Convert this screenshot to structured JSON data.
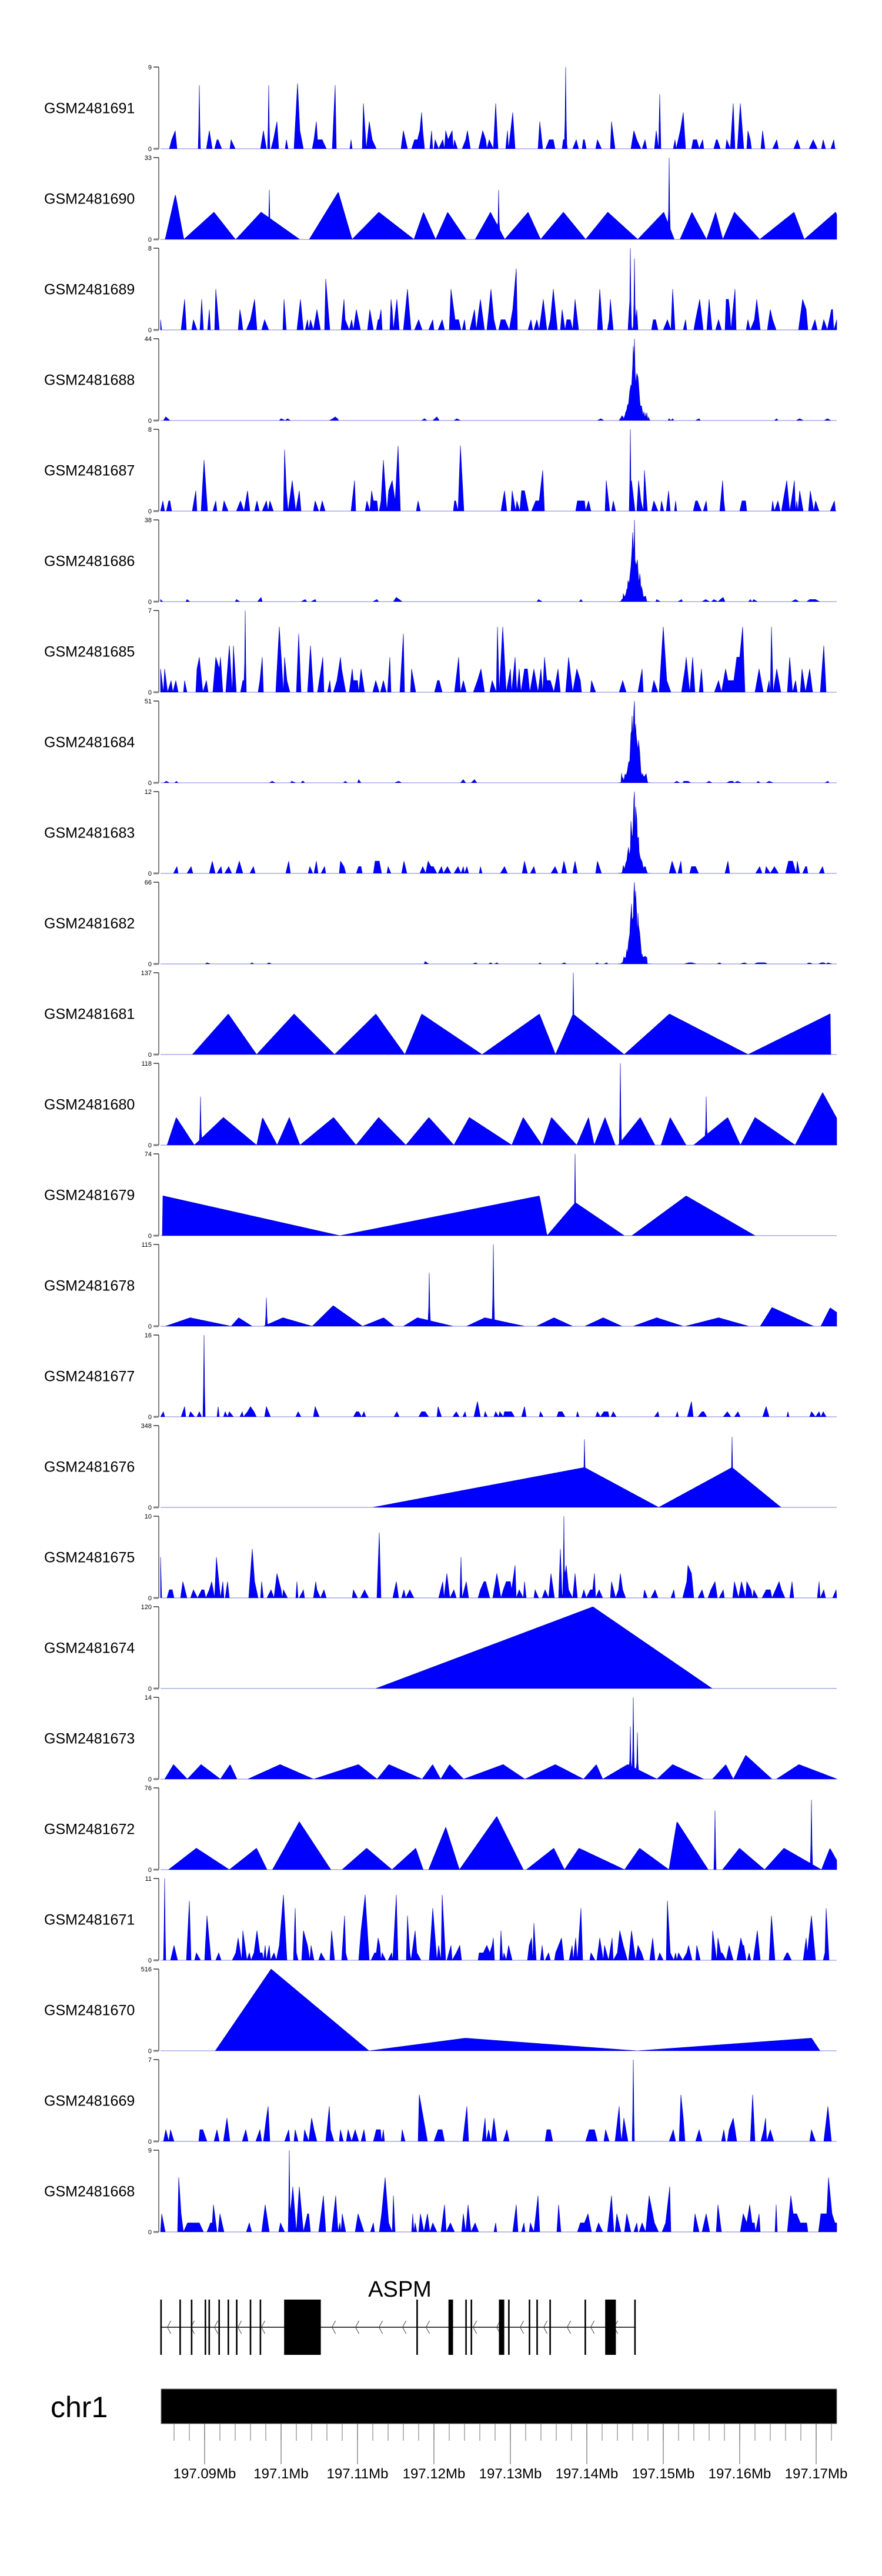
{
  "chart_data": {
    "type": "area",
    "title": "",
    "xlabel": "",
    "xlim_mb": [
      197.0842,
      197.1727
    ],
    "fill_color": "#0000FF",
    "outline_color": "#0000B0",
    "axis_color": "#808080",
    "main_peak_mb": 197.1462,
    "tracks": [
      {
        "name": "GSM2481691",
        "ymax": 9,
        "kind": "dense",
        "mean": 1.2,
        "seed": 11,
        "spikes": [
          [
            197.1372,
            9
          ],
          [
            197.0893,
            7
          ],
          [
            197.0984,
            7
          ]
        ]
      },
      {
        "name": "GSM2481690",
        "ymax": 33,
        "kind": "tri",
        "level": 11,
        "seed": 12,
        "spikes": [
          [
            197.1508,
            33
          ],
          [
            197.0985,
            20
          ],
          [
            197.1285,
            20
          ]
        ]
      },
      {
        "name": "GSM2481689",
        "ymax": 8,
        "kind": "dense",
        "mean": 1.6,
        "seed": 13,
        "spikes": [
          [
            197.1457,
            8
          ],
          [
            197.1462,
            7
          ]
        ]
      },
      {
        "name": "GSM2481688",
        "ymax": 44,
        "kind": "peak",
        "noise": 0.4,
        "seed": 14,
        "spikes": [
          [
            197.1462,
            44
          ]
        ]
      },
      {
        "name": "GSM2481687",
        "ymax": 8,
        "kind": "dense",
        "mean": 1.3,
        "seed": 15,
        "spikes": [
          [
            197.1457,
            8
          ]
        ]
      },
      {
        "name": "GSM2481686",
        "ymax": 38,
        "kind": "peak",
        "noise": 0.4,
        "seed": 16,
        "spikes": [
          [
            197.1462,
            38
          ]
        ]
      },
      {
        "name": "GSM2481685",
        "ymax": 7,
        "kind": "dense",
        "mean": 1.6,
        "seed": 17,
        "spikes": [
          [
            197.0953,
            7
          ]
        ]
      },
      {
        "name": "GSM2481684",
        "ymax": 51,
        "kind": "peak",
        "noise": 0.5,
        "seed": 18,
        "spikes": [
          [
            197.1462,
            51
          ]
        ]
      },
      {
        "name": "GSM2481683",
        "ymax": 12,
        "kind": "peak",
        "noise": 1.0,
        "seed": 19,
        "spikes": [
          [
            197.1462,
            12
          ]
        ]
      },
      {
        "name": "GSM2481682",
        "ymax": 66,
        "kind": "peak",
        "noise": 0.5,
        "seed": 20,
        "spikes": [
          [
            197.1462,
            66
          ]
        ]
      },
      {
        "name": "GSM2481681",
        "ymax": 137,
        "kind": "explicit",
        "spikes": [
          [
            197.1382,
            137
          ]
        ],
        "triangles": [
          [
            197.0884,
            197.0931,
            197.0968,
            68
          ],
          [
            197.0968,
            197.1017,
            197.107,
            68
          ],
          [
            197.107,
            197.1124,
            197.1162,
            68
          ],
          [
            197.1162,
            197.1184,
            197.1263,
            68
          ],
          [
            197.1263,
            197.1338,
            197.1359,
            68
          ],
          [
            197.1359,
            197.1382,
            197.1449,
            68
          ],
          [
            197.1449,
            197.1508,
            197.1611,
            68
          ],
          [
            197.1611,
            197.1718,
            197.1718,
            68
          ]
        ]
      },
      {
        "name": "GSM2481680",
        "ymax": 118,
        "kind": "tri",
        "level": 40,
        "seed": 22,
        "spikes": [
          [
            197.1444,
            118
          ],
          [
            197.1556,
            70
          ],
          [
            197.0895,
            70
          ]
        ]
      },
      {
        "name": "GSM2481679",
        "ymax": 74,
        "kind": "explicit",
        "spikes": [
          [
            197.1385,
            74
          ]
        ],
        "triangles": [
          [
            197.0846,
            197.0846,
            197.1077,
            36
          ],
          [
            197.1077,
            197.1338,
            197.1348,
            36
          ],
          [
            197.1348,
            197.1385,
            197.1449,
            30
          ],
          [
            197.1459,
            197.153,
            197.162,
            36
          ]
        ]
      },
      {
        "name": "GSM2481678",
        "ymax": 115,
        "kind": "tri",
        "level": 12,
        "seed": 24,
        "spikes": [
          [
            197.1278,
            115
          ],
          [
            197.1194,
            75
          ],
          [
            197.0981,
            40
          ]
        ]
      },
      {
        "name": "GSM2481677",
        "ymax": 16,
        "kind": "dense",
        "mean": 0.8,
        "seed": 25,
        "spikes": [
          [
            197.0899,
            16
          ]
        ]
      },
      {
        "name": "GSM2481676",
        "ymax": 348,
        "kind": "explicit",
        "spikes": [
          [
            197.1397,
            290
          ],
          [
            197.159,
            300
          ]
        ],
        "triangles": [
          [
            197.112,
            197.1397,
            197.1494,
            170
          ],
          [
            197.1494,
            197.159,
            197.1654,
            170
          ]
        ]
      },
      {
        "name": "GSM2481675",
        "ymax": 10,
        "kind": "dense",
        "mean": 1.5,
        "seed": 27,
        "spikes": [
          [
            197.137,
            10
          ]
        ]
      },
      {
        "name": "GSM2481674",
        "ymax": 120,
        "kind": "explicit",
        "spikes": [],
        "triangles": [
          [
            197.1124,
            197.1408,
            197.1564,
            120
          ]
        ]
      },
      {
        "name": "GSM2481673",
        "ymax": 14,
        "kind": "tri",
        "level": 2.5,
        "seed": 29,
        "spikes": [
          [
            197.1461,
            14
          ],
          [
            197.1457,
            9
          ],
          [
            197.1466,
            8
          ]
        ]
      },
      {
        "name": "GSM2481672",
        "ymax": 76,
        "kind": "tri",
        "level": 20,
        "seed": 30,
        "spikes": [
          [
            197.1568,
            55
          ],
          [
            197.1694,
            65
          ]
        ]
      },
      {
        "name": "GSM2481671",
        "ymax": 11,
        "kind": "dense",
        "mean": 2.5,
        "seed": 31,
        "spikes": [
          [
            197.0848,
            11
          ]
        ]
      },
      {
        "name": "GSM2481670",
        "ymax": 516,
        "kind": "explicit",
        "spikes": [],
        "triangles": [
          [
            197.0914,
            197.0987,
            197.1115,
            516
          ],
          [
            197.1115,
            197.1241,
            197.1466,
            80
          ],
          [
            197.1466,
            197.1694,
            197.1705,
            80
          ]
        ]
      },
      {
        "name": "GSM2481669",
        "ymax": 7,
        "kind": "dense",
        "mean": 0.9,
        "seed": 33,
        "spikes": [
          [
            197.1461,
            7
          ]
        ]
      },
      {
        "name": "GSM2481668",
        "ymax": 9,
        "kind": "dense",
        "mean": 1.5,
        "seed": 34,
        "spikes": [
          [
            197.1011,
            9
          ]
        ]
      }
    ],
    "gene": {
      "name": "ASPM",
      "strand": "-",
      "start_mb": 197.0842,
      "end_mb": 197.1464,
      "exons": [
        [
          197.0842,
          197.0844
        ],
        [
          197.0867,
          197.0869
        ],
        [
          197.0882,
          197.0884
        ],
        [
          197.09,
          197.0902
        ],
        [
          197.0905,
          197.0907
        ],
        [
          197.0918,
          197.092
        ],
        [
          197.093,
          197.0932
        ],
        [
          197.0941,
          197.0943
        ],
        [
          197.0959,
          197.0961
        ],
        [
          197.0972,
          197.0974
        ],
        [
          197.1004,
          197.1052
        ],
        [
          197.1177,
          197.1179
        ],
        [
          197.1219,
          197.1225
        ],
        [
          197.1241,
          197.1243
        ],
        [
          197.1248,
          197.125
        ],
        [
          197.1285,
          197.1292
        ],
        [
          197.1297,
          197.1299
        ],
        [
          197.1324,
          197.1326
        ],
        [
          197.1334,
          197.1336
        ],
        [
          197.1351,
          197.1353
        ],
        [
          197.1397,
          197.1399
        ],
        [
          197.1424,
          197.1438
        ],
        [
          197.1462,
          197.1464
        ]
      ]
    },
    "chromosome": {
      "name": "chr1"
    },
    "axis": {
      "minor_step_mb": 0.002,
      "major_ticks_mb": [
        197.09,
        197.1,
        197.11,
        197.12,
        197.13,
        197.14,
        197.15,
        197.16,
        197.17
      ],
      "labels": [
        "197.09Mb",
        "197.1Mb",
        "197.11Mb",
        "197.12Mb",
        "197.13Mb",
        "197.14Mb",
        "197.15Mb",
        "197.16Mb",
        "197.17Mb"
      ]
    }
  }
}
